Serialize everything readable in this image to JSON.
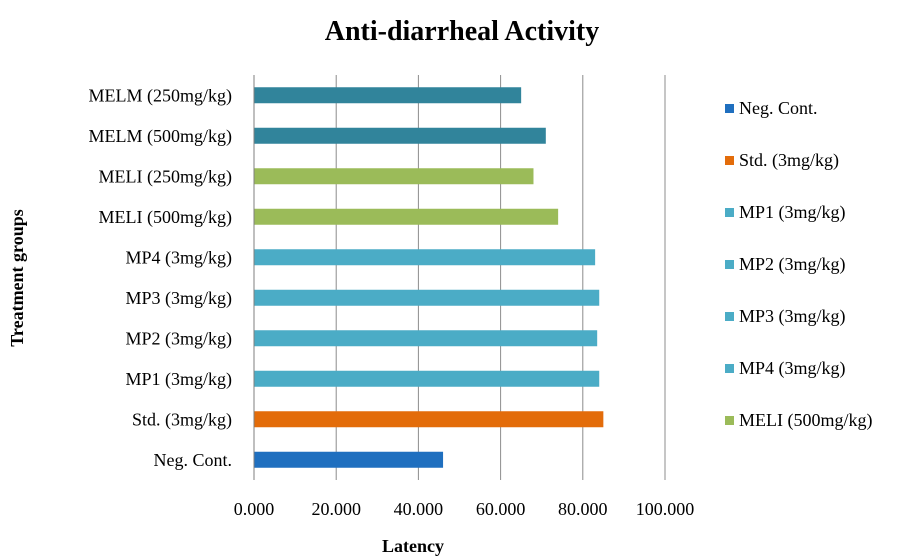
{
  "chart_data": {
    "type": "bar",
    "orientation": "horizontal",
    "title": "Anti-diarrheal Activity",
    "xlabel": "Latency",
    "ylabel": "Treatment groups",
    "xlim": [
      0,
      100
    ],
    "x_ticks": [
      "0.000",
      "20.000",
      "40.000",
      "60.000",
      "80.000",
      "100.000"
    ],
    "grid": "vertical",
    "legend_position": "right",
    "categories": [
      "Neg. Cont.",
      "Std. (3mg/kg)",
      "MP1 (3mg/kg)",
      "MP2 (3mg/kg)",
      "MP3 (3mg/kg)",
      "MP4 (3mg/kg)",
      "MELI (500mg/kg)",
      "MELI (250mg/kg)",
      "MELM (500mg/kg)",
      "MELM (250mg/kg)"
    ],
    "values": [
      46,
      85,
      84,
      83.5,
      84,
      83,
      74,
      68,
      71,
      65
    ],
    "colors": [
      "#1f6fbf",
      "#e36c0a",
      "#4bacc6",
      "#4bacc6",
      "#4bacc6",
      "#4bacc6",
      "#9bbb59",
      "#9bbb59",
      "#31849b",
      "#31849b"
    ],
    "legend": [
      {
        "label": "Neg. Cont.",
        "color": "#1f6fbf"
      },
      {
        "label": "Std. (3mg/kg)",
        "color": "#e36c0a"
      },
      {
        "label": "MP1 (3mg/kg)",
        "color": "#4bacc6"
      },
      {
        "label": "MP2 (3mg/kg)",
        "color": "#4bacc6"
      },
      {
        "label": "MP3 (3mg/kg)",
        "color": "#4bacc6"
      },
      {
        "label": "MP4 (3mg/kg)",
        "color": "#4bacc6"
      },
      {
        "label": "MELI (500mg/kg)",
        "color": "#9bbb59"
      }
    ]
  }
}
